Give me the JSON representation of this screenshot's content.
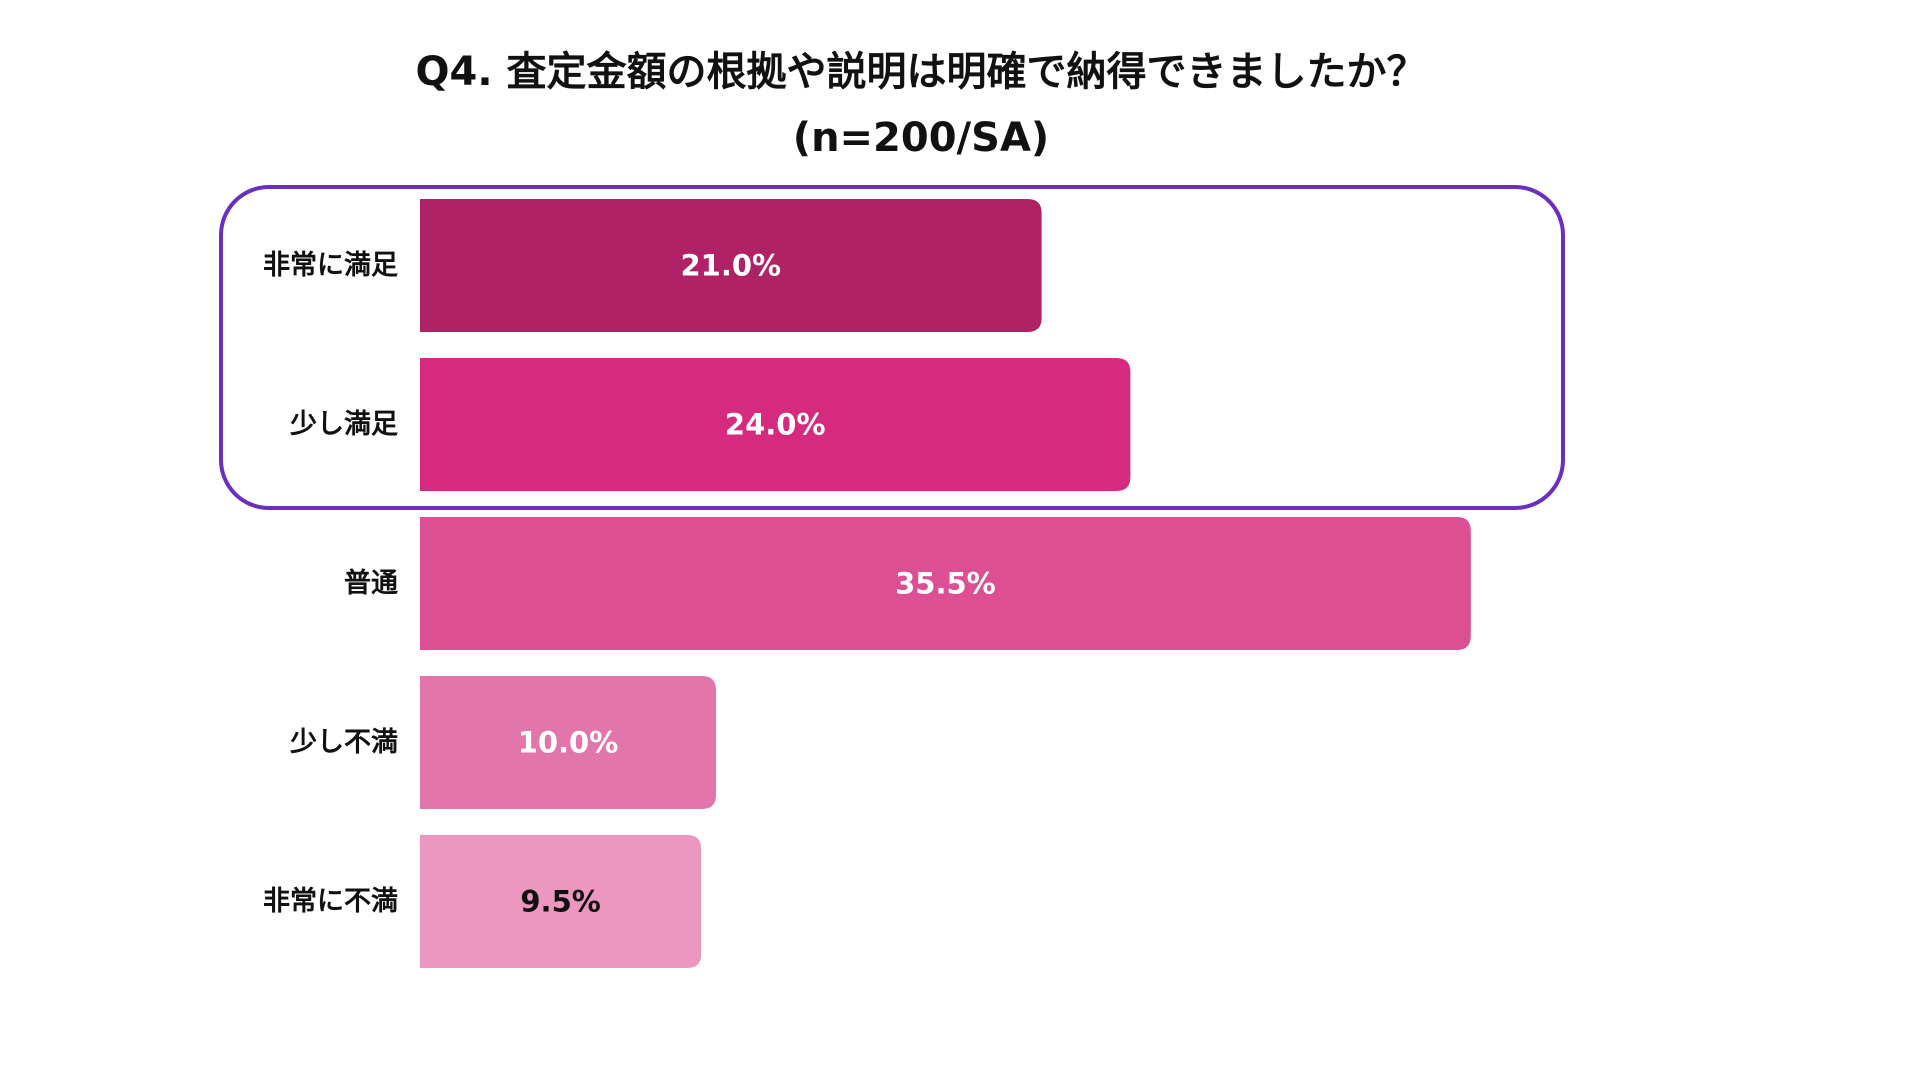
{
  "chart_data": {
    "type": "bar",
    "orientation": "horizontal",
    "title": "Q4. 査定金額の根拠や説明は明確で納得できましたか？",
    "subtitle": "(n=200/SA)",
    "categories": [
      "非常に満足",
      "少し満足",
      "普通",
      "少し不満",
      "非常に不満"
    ],
    "values": [
      21.0,
      24.0,
      35.5,
      10.0,
      9.5
    ],
    "value_labels": [
      "21.0%",
      "24.0%",
      "35.5%",
      "10.0%",
      "9.5%"
    ],
    "bar_colors": [
      "#b02266",
      "#d62a7e",
      "#dc4f93",
      "#e276aa",
      "#eb97c0"
    ],
    "label_colors": [
      "#ffffff",
      "#ffffff",
      "#ffffff",
      "#ffffff",
      "#111111"
    ],
    "highlight": {
      "categories": [
        "非常に満足",
        "少し満足"
      ],
      "color": "#6a2fc0"
    },
    "grid": false,
    "legend": "none",
    "xlim": [
      0,
      40
    ]
  }
}
